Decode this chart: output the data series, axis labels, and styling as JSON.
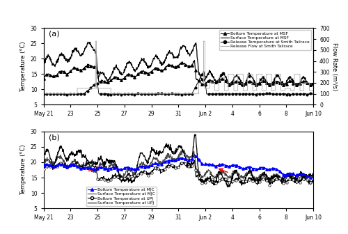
{
  "title_a": "(a)",
  "title_b": "(b)",
  "xlim_start": 0,
  "xlim_end": 20,
  "ylim_temp": [
    5,
    30
  ],
  "ylim_flow": [
    0,
    700
  ],
  "yticks_temp": [
    5,
    10,
    15,
    20,
    25,
    30
  ],
  "yticks_flow": [
    0,
    100,
    200,
    300,
    400,
    500,
    600,
    700
  ],
  "ylabel_temp": "Temperature (°C)",
  "ylabel_flow": "Flow Rate (m³/s)",
  "xtick_labels": [
    "May 21",
    "23",
    "25",
    "27",
    "29",
    "31",
    "Jun 2",
    "4",
    "6",
    "8",
    "Jun 10"
  ],
  "xtick_positions": [
    0,
    2,
    4,
    6,
    8,
    10,
    12,
    14,
    16,
    18,
    20
  ],
  "background_color": "#ffffff",
  "arrow_b1": {
    "x_tail": 3.2,
    "y_tail": 17.0,
    "x_head": 4.4,
    "y_head": 18.5
  },
  "arrow_b2": {
    "x_tail": 13.8,
    "y_tail": 16.5,
    "x_head": 12.8,
    "y_head": 18.2
  }
}
